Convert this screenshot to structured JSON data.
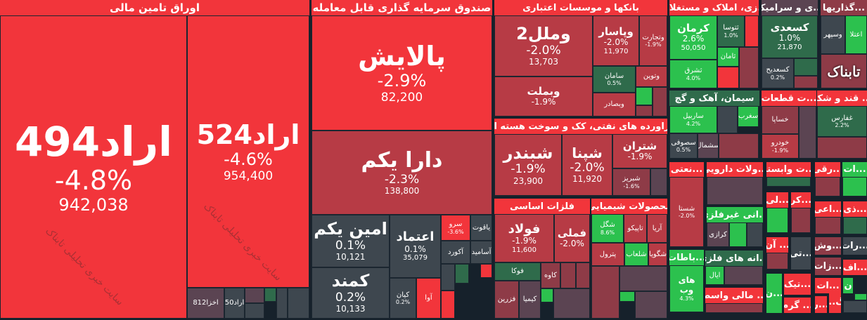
{
  "sectors": {
    "bonds": {
      "title": "اوراق تامین مالی",
      "tiles": [
        {
          "n": "اراد494",
          "p": "-4.8%",
          "v": "942,038"
        },
        {
          "n": "اراد524",
          "p": "-4.6%",
          "v": "954,400"
        },
        {
          "n": "اخزا812"
        },
        {
          "n": "اراد50"
        }
      ]
    },
    "etf": {
      "title": "صندوق سرمایه گذاری قابل معامله",
      "tiles": [
        {
          "n": "پالایش",
          "p": "-2.9%",
          "v": "82,200"
        },
        {
          "n": "دارا یکم",
          "p": "-2.3%",
          "v": "138,800"
        },
        {
          "n": "امین یکم",
          "p": "0.1%",
          "v": "10,121"
        },
        {
          "n": "کمند",
          "p": "0.2%",
          "v": "10,133"
        },
        {
          "n": "اعتماد",
          "p": "0.1%",
          "v": "35,079"
        },
        {
          "n": "کیان",
          "p": "0.2%"
        },
        {
          "n": "آوا"
        },
        {
          "n": "سرو",
          "p": "-3.6%"
        },
        {
          "n": "یاقوت"
        },
        {
          "n": "آکورد"
        },
        {
          "n": "آسامید"
        }
      ]
    },
    "banks": {
      "title": "بانکها و موسسات اعتباری",
      "tiles": [
        {
          "n": "وملل2",
          "p": "-2.0%",
          "v": "13,703"
        },
        {
          "n": "وبملت",
          "p": "-1.9%"
        },
        {
          "n": "وپاسار",
          "p": "-2.0%",
          "v": "11,970"
        },
        {
          "n": "وتجارت",
          "p": "-1.9%"
        },
        {
          "n": "سامان",
          "p": "0.5%"
        },
        {
          "n": "وتوین"
        },
        {
          "n": "وبصادر"
        }
      ]
    },
    "petro": {
      "title": "فراورده های نفتی، کک و سوخت هسته ای",
      "tiles": [
        {
          "n": "شبندر",
          "p": "-1.9%",
          "v": "23,900"
        },
        {
          "n": "شپنا",
          "p": "-2.0%",
          "v": "11,920"
        },
        {
          "n": "شتران",
          "p": "-1.9%"
        },
        {
          "n": "شبریز",
          "p": "-1.6%"
        }
      ]
    },
    "metals": {
      "title": "فلزات اساسی",
      "tiles": [
        {
          "n": "فولاد",
          "p": "-1.9%",
          "v": "11,600"
        },
        {
          "n": "فملی",
          "p": "-2.0%"
        },
        {
          "n": "فوکا"
        },
        {
          "n": "کاوه"
        },
        {
          "n": "فزرین"
        },
        {
          "n": "کیمیا"
        }
      ]
    },
    "chem": {
      "title": "محصولات شیمیایی",
      "tiles": [
        {
          "n": "شگل",
          "p": "8.6%"
        },
        {
          "n": "تاپیکو"
        },
        {
          "n": "آریا"
        },
        {
          "n": "پترول"
        },
        {
          "n": "شلعاب"
        },
        {
          "n": "شگویا"
        }
      ]
    },
    "realestate": {
      "title": "...زی، املاک و مستغلات",
      "tiles": [
        {
          "n": "کرمان",
          "p": "2.6%",
          "v": "50,050"
        },
        {
          "n": "ثشرق",
          "p": "4.0%"
        },
        {
          "n": "ثتوسا",
          "p": "1.0%"
        },
        {
          "n": "ثامان"
        }
      ]
    },
    "tile": {
      "title": "...ی و سرامیک",
      "tiles": [
        {
          "n": "کسعدی",
          "p": "1.0%",
          "v": "21,870"
        },
        {
          "n": "کسعدیح",
          "p": "0.2%"
        }
      ]
    },
    "invest": {
      "title": "...گذاریها",
      "tiles": [
        {
          "n": "وسپهر"
        },
        {
          "n": "اعتلا"
        }
      ]
    },
    "cement": {
      "title": "سیمان، آهک و گچ",
      "tiles": [
        {
          "n": "ساربیل",
          "p": "4.2%"
        },
        {
          "n": "سغرب"
        },
        {
          "n": "سصوفی",
          "p": "0.5%"
        },
        {
          "n": "سشمال"
        }
      ]
    },
    "auto": {
      "title": "...ت قطعات",
      "tiles": [
        {
          "n": "خساپا"
        },
        {
          "n": "خودرو",
          "p": "-1.9%"
        }
      ]
    },
    "sugar": {
      "title": "... قند و شکر",
      "tiles": [
        {
          "n": "غفارس",
          "p": "2.2%"
        }
      ]
    },
    "s13": {
      "title": "...نعتی",
      "tiles": [
        {
          "n": "شستا",
          "p": "-2.0%"
        }
      ]
    },
    "s14": {
      "title": "...ولات دارویی"
    },
    "s15": {
      "title": "...ت وابسته"
    },
    "s16": {
      "title": "...رقی"
    },
    "s17": {
      "title": "...ات"
    },
    "s18": {
      "title": "...انی غیرفلزی",
      "tiles": [
        {
          "n": "کرازی"
        }
      ]
    },
    "s19": {
      "title": "...باطات",
      "tiles": [
        {
          "n": "های وب",
          "p": "4.3%"
        }
      ]
    },
    "s20": {
      "title": "...انه های فلزی",
      "tiles": [
        {
          "n": "ایال"
        }
      ]
    },
    "s21": {
      "title": "... مالی واسط"
    },
    "s22": {
      "title": "...لی"
    },
    "s23": {
      "title": "...کر"
    },
    "s24": {
      "title": "... آن"
    },
    "s25": {
      "title": "...تی"
    },
    "s26": {
      "title": "...ن"
    },
    "s27": {
      "title": "...تیک"
    },
    "s28": {
      "title": "... گرم"
    },
    "s29": {
      "title": "...اعی"
    },
    "s30": {
      "title": "...ذی"
    },
    "s31": {
      "title": "...وش"
    },
    "s32": {
      "title": "...رات"
    },
    "s33": {
      "title": "...زات"
    },
    "s34": {
      "title": "...اف"
    },
    "s35": {
      "title": "...ات"
    },
    "s36": {
      "title": "...ر"
    },
    "s37": {
      "title": "گ..."
    },
    "s38": {
      "title": "ن"
    }
  },
  "watermark": "سایت خبری تحلیلی تابناک",
  "logo": "تابناک",
  "colors": {
    "strong_red": "#f2353b",
    "red": "#b73b45",
    "neutral": "#3e474f",
    "green": "#2cc14e",
    "dark_green": "#2f6b4b",
    "background": "#16212b"
  }
}
